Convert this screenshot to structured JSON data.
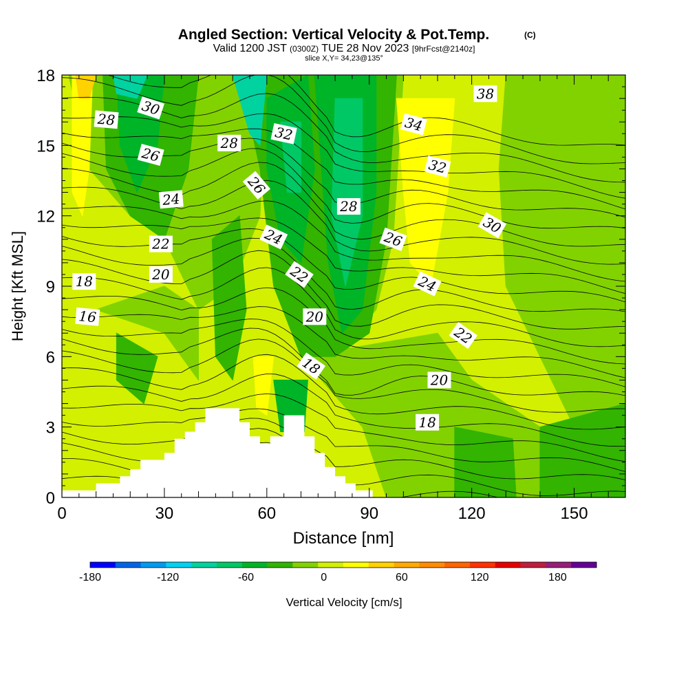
{
  "chart_data": {
    "type": "heatmap",
    "title": "Angled Section: Vertical Velocity & Pot.Temp.",
    "title_mark": "(C)",
    "subtitle_parts": [
      "Valid 1200 JST",
      "(0300Z)",
      "TUE 28 Nov 2023",
      "[9hrFcst@2140z]"
    ],
    "slice_label": "slice X,Y= 34,23@135°",
    "xlabel": "Distance [nm]",
    "ylabel": "Height [Kft MSL]",
    "xlim": [
      0,
      165
    ],
    "ylim": [
      0,
      18
    ],
    "x_ticks": [
      0,
      30,
      60,
      90,
      120,
      150
    ],
    "y_ticks": [
      0,
      3,
      6,
      9,
      12,
      15,
      18
    ],
    "colorbar": {
      "label": "Vertical Velocity [cm/s]",
      "ticks": [
        "-180",
        "-120",
        "-60",
        "0",
        "60",
        "120",
        "180"
      ],
      "tick_values": [
        -180,
        -120,
        -60,
        0,
        60,
        120,
        180
      ],
      "range": [
        -180,
        210
      ],
      "step": 20,
      "colors": [
        "#0000ff",
        "#0064e6",
        "#009bf0",
        "#00d2f0",
        "#00d2a0",
        "#00c864",
        "#00b428",
        "#32b400",
        "#82d200",
        "#d2f000",
        "#ffff00",
        "#ffd200",
        "#ffaa00",
        "#ff8c00",
        "#ff6400",
        "#ff3200",
        "#e60000",
        "#be1e3c",
        "#961e78",
        "#640096"
      ]
    },
    "contour_labels": [
      {
        "text": "28",
        "x": 13,
        "y": 16.1,
        "rot": 5
      },
      {
        "text": "30",
        "x": 26,
        "y": 16.6,
        "rot": 18
      },
      {
        "text": "26",
        "x": 26,
        "y": 14.6,
        "rot": 15
      },
      {
        "text": "24",
        "x": 32,
        "y": 12.7,
        "rot": -5
      },
      {
        "text": "22",
        "x": 29,
        "y": 10.8,
        "rot": 0
      },
      {
        "text": "20",
        "x": 29,
        "y": 9.5,
        "rot": 0
      },
      {
        "text": "18",
        "x": 6.5,
        "y": 9.2,
        "rot": 0
      },
      {
        "text": "16",
        "x": 7.5,
        "y": 7.7,
        "rot": 5
      },
      {
        "text": "28",
        "x": 49,
        "y": 15.1,
        "rot": 0
      },
      {
        "text": "26",
        "x": 57,
        "y": 13.3,
        "rot": 50
      },
      {
        "text": "24",
        "x": 62,
        "y": 11.1,
        "rot": 25
      },
      {
        "text": "32",
        "x": 65,
        "y": 15.5,
        "rot": 12
      },
      {
        "text": "22",
        "x": 69.5,
        "y": 9.5,
        "rot": 35
      },
      {
        "text": "20",
        "x": 74,
        "y": 7.7,
        "rot": 0
      },
      {
        "text": "18",
        "x": 73,
        "y": 5.6,
        "rot": 35
      },
      {
        "text": "28",
        "x": 84,
        "y": 12.4,
        "rot": 0
      },
      {
        "text": "26",
        "x": 97,
        "y": 11.0,
        "rot": 20
      },
      {
        "text": "34",
        "x": 103,
        "y": 15.9,
        "rot": 15
      },
      {
        "text": "32",
        "x": 110,
        "y": 14.1,
        "rot": 15
      },
      {
        "text": "24",
        "x": 107,
        "y": 9.1,
        "rot": 25
      },
      {
        "text": "22",
        "x": 117.5,
        "y": 6.9,
        "rot": 35
      },
      {
        "text": "20",
        "x": 110.5,
        "y": 5.0,
        "rot": 0
      },
      {
        "text": "18",
        "x": 107,
        "y": 3.2,
        "rot": 0
      },
      {
        "text": "30",
        "x": 126,
        "y": 11.6,
        "rot": 30
      },
      {
        "text": "38",
        "x": 124,
        "y": 17.2,
        "rot": 0
      }
    ],
    "terrain": [
      [
        0,
        0
      ],
      [
        0,
        0.3
      ],
      [
        10,
        0.3
      ],
      [
        10,
        0.6
      ],
      [
        17,
        0.6
      ],
      [
        17,
        0.9
      ],
      [
        20,
        0.9
      ],
      [
        20,
        1.2
      ],
      [
        23,
        1.2
      ],
      [
        23,
        1.6
      ],
      [
        30,
        1.6
      ],
      [
        30,
        1.9
      ],
      [
        33,
        1.9
      ],
      [
        33,
        2.5
      ],
      [
        36,
        2.5
      ],
      [
        36,
        2.8
      ],
      [
        39,
        2.8
      ],
      [
        39,
        3.2
      ],
      [
        42,
        3.2
      ],
      [
        42,
        3.8
      ],
      [
        52,
        3.8
      ],
      [
        52,
        3.2
      ],
      [
        55,
        3.2
      ],
      [
        55,
        2.6
      ],
      [
        58,
        2.6
      ],
      [
        58,
        2.3
      ],
      [
        61,
        2.3
      ],
      [
        61,
        2.6
      ],
      [
        65,
        2.6
      ],
      [
        65,
        3.5
      ],
      [
        71,
        3.5
      ],
      [
        71,
        2.6
      ],
      [
        74,
        2.6
      ],
      [
        74,
        1.9
      ],
      [
        77,
        1.9
      ],
      [
        77,
        1.3
      ],
      [
        80,
        1.3
      ],
      [
        80,
        0.9
      ],
      [
        83,
        0.9
      ],
      [
        83,
        0.6
      ],
      [
        86,
        0.6
      ],
      [
        86,
        0.3
      ],
      [
        91,
        0.3
      ],
      [
        91,
        0
      ]
    ]
  }
}
